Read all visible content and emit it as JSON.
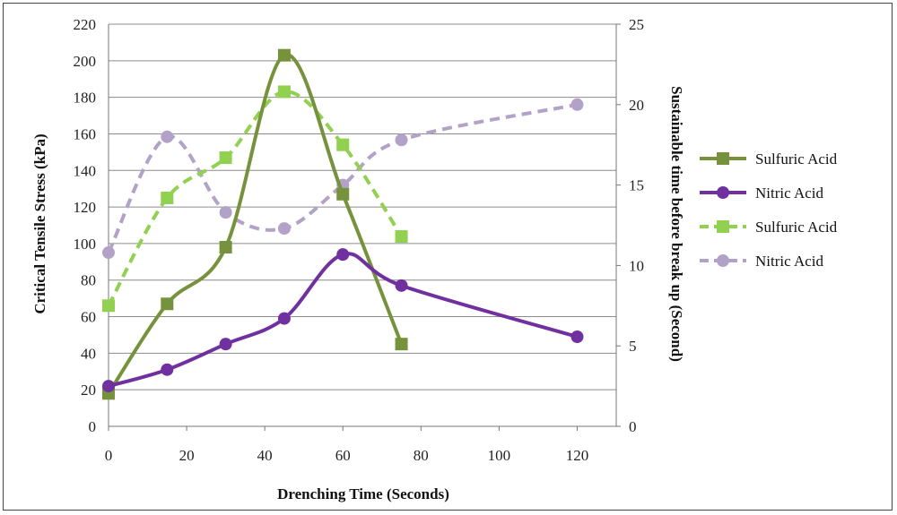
{
  "chart_data": {
    "type": "line",
    "xlabel": "Drenching Time (Seconds)",
    "ylabel": "Critical Tensile Stress (kPa)",
    "y2label": "Sustainable time before break up (Second)",
    "xlim": [
      0,
      130
    ],
    "ylim": [
      0,
      220
    ],
    "y2lim": [
      0,
      25
    ],
    "x_ticks": [
      0,
      20,
      40,
      60,
      80,
      100,
      120
    ],
    "y_ticks": [
      0,
      20,
      40,
      60,
      80,
      100,
      120,
      140,
      160,
      180,
      200,
      220
    ],
    "y2_ticks": [
      0,
      5,
      10,
      15,
      20,
      25
    ],
    "grid": "horizontal",
    "legend_position": "right",
    "series": [
      {
        "name": "Sulfuric Acid",
        "axis": "left",
        "style": "solid",
        "marker": "square",
        "color": "#76923c",
        "x": [
          0,
          15,
          30,
          45,
          60,
          75
        ],
        "y": [
          18,
          67,
          98,
          203,
          127,
          45
        ]
      },
      {
        "name": "Nitric Acid",
        "axis": "left",
        "style": "solid",
        "marker": "circle",
        "color": "#7030a0",
        "x": [
          0,
          15,
          30,
          45,
          60,
          75,
          120
        ],
        "y": [
          22,
          31,
          45,
          59,
          94,
          77,
          49
        ]
      },
      {
        "name": "Sulfuric Acid",
        "axis": "right",
        "style": "dashed",
        "marker": "square",
        "color": "#92d050",
        "x": [
          0,
          15,
          30,
          45,
          60,
          75
        ],
        "y": [
          7.5,
          14.2,
          16.7,
          20.8,
          17.5,
          11.8
        ]
      },
      {
        "name": "Nitric Acid",
        "axis": "right",
        "style": "dashed",
        "marker": "circle",
        "color": "#b3a2c7",
        "x": [
          0,
          15,
          30,
          45,
          60,
          75,
          120
        ],
        "y": [
          10.8,
          18.0,
          13.3,
          12.3,
          15.0,
          17.8,
          20.0
        ]
      }
    ]
  }
}
